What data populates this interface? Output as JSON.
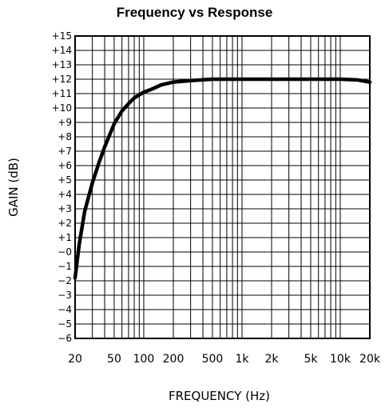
{
  "chart_data": {
    "type": "line",
    "title": "Frequency vs Response",
    "xlabel": "FREQUENCY (Hz)",
    "ylabel": "GAIN (dB)",
    "x_scale": "log",
    "xlim": [
      20,
      20000
    ],
    "ylim": [
      -6,
      15
    ],
    "grid": true,
    "x_ticks": [
      {
        "value": 20,
        "label": "20"
      },
      {
        "value": 50,
        "label": "50"
      },
      {
        "value": 100,
        "label": "100"
      },
      {
        "value": 200,
        "label": "200"
      },
      {
        "value": 500,
        "label": "500"
      },
      {
        "value": 1000,
        "label": "1k"
      },
      {
        "value": 2000,
        "label": "2k"
      },
      {
        "value": 5000,
        "label": "5k"
      },
      {
        "value": 10000,
        "label": "10k"
      },
      {
        "value": 20000,
        "label": "20k"
      }
    ],
    "y_ticks": [
      {
        "value": 15,
        "label": "+15"
      },
      {
        "value": 14,
        "label": "+14"
      },
      {
        "value": 13,
        "label": "+13"
      },
      {
        "value": 12,
        "label": "+12"
      },
      {
        "value": 11,
        "label": "+11"
      },
      {
        "value": 10,
        "label": "+10"
      },
      {
        "value": 9,
        "label": "+9"
      },
      {
        "value": 8,
        "label": "+8"
      },
      {
        "value": 7,
        "label": "+7"
      },
      {
        "value": 6,
        "label": "+6"
      },
      {
        "value": 5,
        "label": "+5"
      },
      {
        "value": 4,
        "label": "+4"
      },
      {
        "value": 3,
        "label": "+3"
      },
      {
        "value": 2,
        "label": "+2"
      },
      {
        "value": 1,
        "label": "+1"
      },
      {
        "value": 0,
        "label": "−0"
      },
      {
        "value": -1,
        "label": "−1"
      },
      {
        "value": -2,
        "label": "−2"
      },
      {
        "value": -3,
        "label": "−3"
      },
      {
        "value": -4,
        "label": "−4"
      },
      {
        "value": -5,
        "label": "−5"
      },
      {
        "value": -6,
        "label": "−6"
      }
    ],
    "series": [
      {
        "color": "#000000",
        "x": [
          20,
          22,
          25,
          30,
          35,
          40,
          50,
          60,
          70,
          80,
          100,
          120,
          150,
          200,
          300,
          500,
          700,
          1000,
          2000,
          5000,
          10000,
          15000,
          20000
        ],
        "y": [
          -1.8,
          0.5,
          2.8,
          4.8,
          6.2,
          7.3,
          8.9,
          9.8,
          10.3,
          10.7,
          11.1,
          11.3,
          11.6,
          11.8,
          11.9,
          12.0,
          12.0,
          12.0,
          12.0,
          12.0,
          12.0,
          11.95,
          11.8
        ]
      }
    ]
  }
}
